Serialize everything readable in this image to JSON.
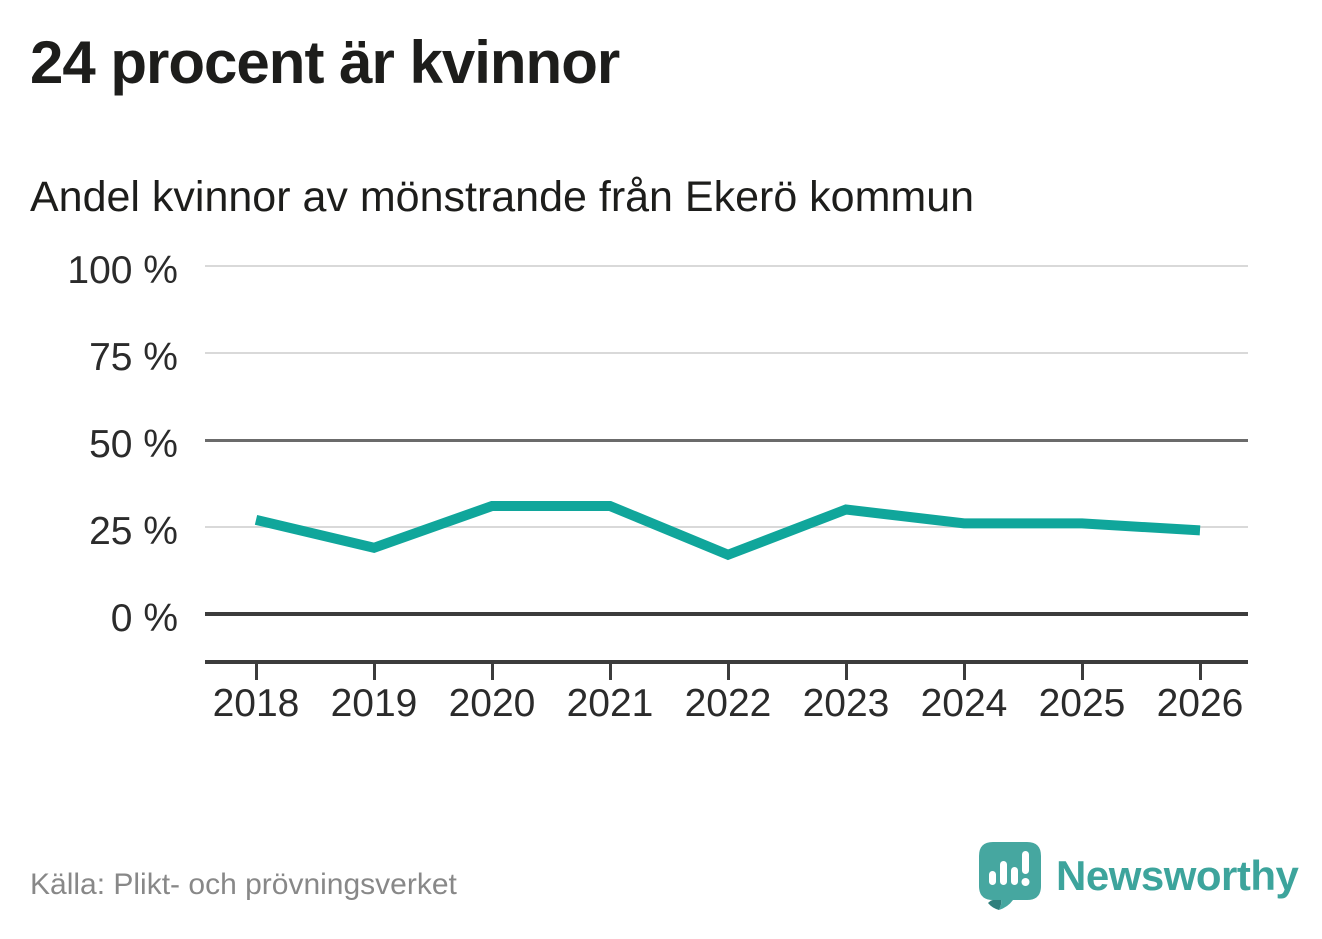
{
  "header": {
    "title": "24 procent är kvinnor",
    "subtitle": "Andel kvinnor av mönstrande från Ekerö kommun"
  },
  "footer": {
    "source": "Källa: Plikt- och prövningsverket",
    "brand": "Newsworthy"
  },
  "colors": {
    "line": "#10a69b",
    "brand_teal": "#3da49c",
    "grid_light": "#d9d9d9",
    "grid_mid": "#6b6b6b",
    "axis_dark": "#3c3c3c"
  },
  "chart_data": {
    "type": "line",
    "title": "24 procent är kvinnor",
    "subtitle": "Andel kvinnor av mönstrande från Ekerö kommun",
    "categories": [
      "2018",
      "2019",
      "2020",
      "2021",
      "2022",
      "2023",
      "2024",
      "2025",
      "2026"
    ],
    "series": [
      {
        "name": "Andel kvinnor av mönstrande, Ekerö kommun",
        "values": [
          27,
          19,
          31,
          31,
          17,
          30,
          26,
          26,
          24
        ]
      }
    ],
    "unit": "%",
    "xlabel": "",
    "ylabel": "",
    "ylim": [
      0,
      100
    ],
    "yticks": [
      {
        "value": 100,
        "label": "100 %"
      },
      {
        "value": 75,
        "label": "75 %"
      },
      {
        "value": 50,
        "label": "50 %"
      },
      {
        "value": 25,
        "label": "25 %"
      },
      {
        "value": 0,
        "label": "0 %"
      }
    ],
    "grid": "horizontal",
    "legend": "none",
    "line_color": "#10a69b"
  }
}
